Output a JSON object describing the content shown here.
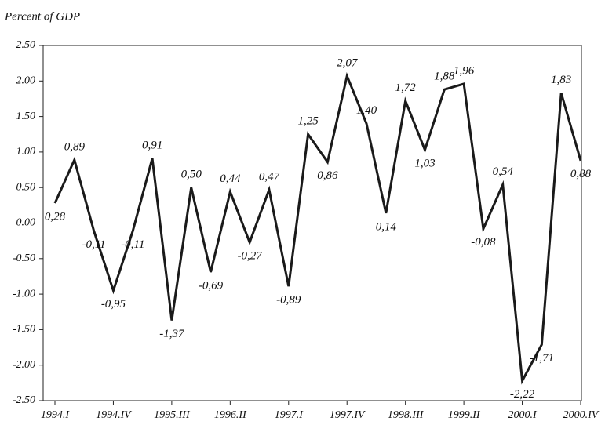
{
  "chart_data": {
    "type": "line",
    "y_axis_label": "Percent of GDP",
    "categories": [
      "1994.I",
      null,
      null,
      "1994.IV",
      null,
      null,
      "1995.III",
      null,
      null,
      "1996.II",
      null,
      null,
      "1997.I",
      null,
      null,
      "1997.IV",
      null,
      null,
      "1998.III",
      null,
      null,
      "1999.II",
      null,
      null,
      "2000.I",
      null,
      null,
      "2000.IV"
    ],
    "values": [
      0.28,
      0.89,
      -0.11,
      -0.95,
      -0.11,
      0.91,
      -1.37,
      0.5,
      -0.69,
      0.44,
      -0.27,
      0.47,
      -0.89,
      1.25,
      0.86,
      2.07,
      1.4,
      0.14,
      1.72,
      1.03,
      1.88,
      1.96,
      -0.08,
      0.54,
      -2.22,
      -1.71,
      1.83,
      0.88
    ],
    "value_labels": [
      "0,28",
      "0,89",
      "-0,11",
      "-0,95",
      "-0,11",
      "0,91",
      "-1,37",
      "0,50",
      "-0,69",
      "0,44",
      "-0,27",
      "0,47",
      "-0,89",
      "1,25",
      "0,86",
      "2,07",
      "1,40",
      "0,14",
      "1,72",
      "1,03",
      "1,88",
      "1,96",
      "-0,08",
      "0,54",
      "-2,22",
      "-1,71",
      "1,83",
      "0,88"
    ],
    "color": "#1a1a1a",
    "ylim": [
      -2.5,
      2.5
    ],
    "yticks": [
      {
        "value": -2.5,
        "label": "-2.50"
      },
      {
        "value": -2,
        "label": "-2.00"
      },
      {
        "value": -1.5,
        "label": "-1.50"
      },
      {
        "value": -1,
        "label": "-1.00"
      },
      {
        "value": -0.5,
        "label": "-0.50"
      },
      {
        "value": 0,
        "label": "0.00"
      },
      {
        "value": 0.5,
        "label": "0.50"
      },
      {
        "value": 1,
        "label": "1.00"
      },
      {
        "value": 1.5,
        "label": "1.50"
      },
      {
        "value": 2,
        "label": "2.00"
      },
      {
        "value": 2.5,
        "label": "2.50"
      }
    ],
    "grid": false
  }
}
